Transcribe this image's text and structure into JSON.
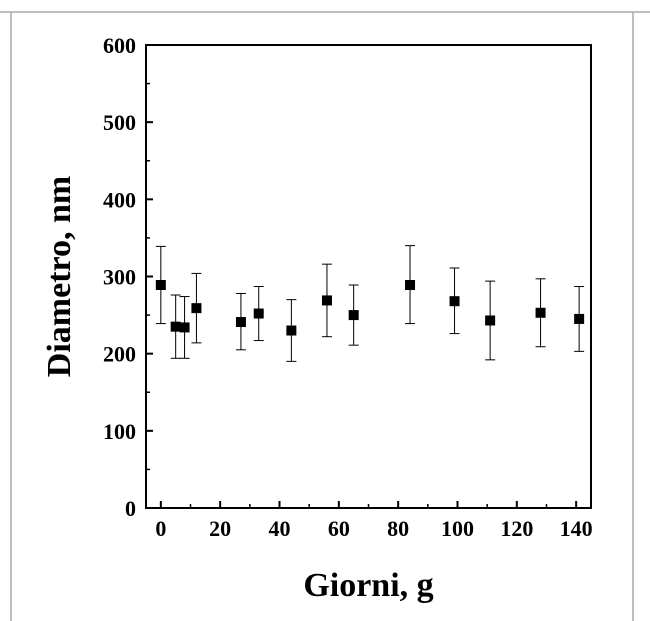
{
  "chart_data": {
    "type": "scatter",
    "title": "",
    "xlabel": "Giorni, g",
    "ylabel": "Diametro, nm",
    "xlim": [
      -5,
      145
    ],
    "ylim": [
      0,
      600
    ],
    "xticks": [
      0,
      20,
      40,
      60,
      80,
      100,
      120,
      140
    ],
    "yticks": [
      0,
      100,
      200,
      300,
      400,
      500,
      600
    ],
    "grid": false,
    "legend": "none",
    "marker": "square",
    "color": "#000000",
    "points": [
      {
        "x": 0,
        "y": 289,
        "err_low": 239,
        "err_high": 339
      },
      {
        "x": 5,
        "y": 235,
        "err_low": 194,
        "err_high": 276
      },
      {
        "x": 8,
        "y": 234,
        "err_low": 194,
        "err_high": 274
      },
      {
        "x": 12,
        "y": 259,
        "err_low": 214,
        "err_high": 304
      },
      {
        "x": 27,
        "y": 241,
        "err_low": 205,
        "err_high": 278
      },
      {
        "x": 33,
        "y": 252,
        "err_low": 217,
        "err_high": 287
      },
      {
        "x": 44,
        "y": 230,
        "err_low": 190,
        "err_high": 270
      },
      {
        "x": 56,
        "y": 269,
        "err_low": 222,
        "err_high": 316
      },
      {
        "x": 65,
        "y": 250,
        "err_low": 211,
        "err_high": 289
      },
      {
        "x": 84,
        "y": 289,
        "err_low": 239,
        "err_high": 340
      },
      {
        "x": 99,
        "y": 268,
        "err_low": 226,
        "err_high": 311
      },
      {
        "x": 111,
        "y": 243,
        "err_low": 192,
        "err_high": 294
      },
      {
        "x": 128,
        "y": 253,
        "err_low": 209,
        "err_high": 297
      },
      {
        "x": 141,
        "y": 245,
        "err_low": 203,
        "err_high": 287
      }
    ]
  }
}
